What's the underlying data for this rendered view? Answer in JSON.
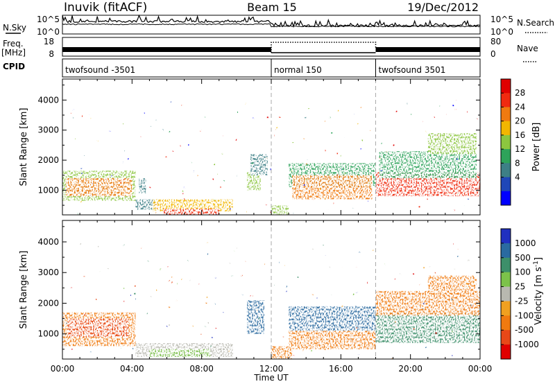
{
  "header": {
    "station": "Inuvik (fitACF)",
    "beam": "Beam 15",
    "date": "19/Dec/2012"
  },
  "nsky_panel": {
    "left_label": "N.Sky",
    "right_label": "N.Search",
    "ticks_left": [
      "10^5",
      "10^0"
    ],
    "ticks_right": [
      "10^5",
      "10^0"
    ]
  },
  "freq_panel": {
    "left_label_line1": "Freq.",
    "left_label_line2": "[MHz]",
    "right_label": "Nave",
    "ticks_left": [
      "18",
      "8"
    ],
    "ticks_right": [
      "80",
      "0"
    ]
  },
  "cpid_panel": {
    "label": "CPID",
    "segments": [
      {
        "start_hour": 0,
        "end_hour": 12,
        "name": "twofsound -3501"
      },
      {
        "start_hour": 12,
        "end_hour": 18,
        "name": "normal 150"
      },
      {
        "start_hour": 18,
        "end_hour": 24,
        "name": "twofsound 3501"
      }
    ]
  },
  "x_axis": {
    "label": "Time UT",
    "tick_labels": [
      "00:00",
      "04:00",
      "08:00",
      "12:00",
      "16:00",
      "20:00",
      "00:00"
    ]
  },
  "colors": {
    "power": [
      "#0000ff",
      "#1f47b8",
      "#3d7f86",
      "#2ea35a",
      "#8cc63f",
      "#f2b600",
      "#f07a10",
      "#f02a10",
      "#e00000"
    ],
    "velocity": [
      "#2030c0",
      "#2a6aa0",
      "#3d8f6a",
      "#7cc24a",
      "#b8b8b0",
      "#f0a020",
      "#f07a10",
      "#e84818",
      "#e00000"
    ]
  },
  "chart_data": [
    {
      "type": "heatmap",
      "title": "Power",
      "xlabel": "",
      "ylabel": "Slant Range [km]",
      "xlim": [
        0,
        24
      ],
      "ylim": [
        180,
        4700
      ],
      "y_ticks": [
        1000,
        2000,
        3000,
        4000
      ],
      "colorbar_label": "Power [dB]",
      "colorbar_ticks": [
        "28",
        "24",
        "20",
        "16",
        "12",
        "8",
        "4"
      ],
      "colorbar_range": [
        0,
        32
      ],
      "regions": [
        {
          "x": [
            0.0,
            4.2
          ],
          "y": [
            650,
            1650
          ],
          "value": 16
        },
        {
          "x": [
            0.2,
            4.0
          ],
          "y": [
            800,
            1400
          ],
          "value": 26
        },
        {
          "x": [
            4.2,
            5.4
          ],
          "y": [
            350,
            700
          ],
          "value": 10
        },
        {
          "x": [
            5.2,
            9.8
          ],
          "y": [
            300,
            700
          ],
          "value": 20
        },
        {
          "x": [
            5.8,
            9.0
          ],
          "y": [
            180,
            380
          ],
          "value": 30
        },
        {
          "x": [
            4.4,
            4.8
          ],
          "y": [
            900,
            1400
          ],
          "value": 10
        },
        {
          "x": [
            10.6,
            11.4
          ],
          "y": [
            1000,
            1600
          ],
          "value": 18
        },
        {
          "x": [
            10.8,
            11.8
          ],
          "y": [
            1500,
            2200
          ],
          "value": 10
        },
        {
          "x": [
            12.0,
            13.0
          ],
          "y": [
            180,
            500
          ],
          "value": 18
        },
        {
          "x": [
            13.0,
            18.0
          ],
          "y": [
            1100,
            1900
          ],
          "value": 14
        },
        {
          "x": [
            13.2,
            17.8
          ],
          "y": [
            700,
            1500
          ],
          "value": 26
        },
        {
          "x": [
            18.0,
            24.0
          ],
          "y": [
            800,
            1600
          ],
          "value": 28
        },
        {
          "x": [
            18.2,
            23.8
          ],
          "y": [
            1400,
            2300
          ],
          "value": 12
        },
        {
          "x": [
            21.0,
            23.8
          ],
          "y": [
            2200,
            2900
          ],
          "value": 16
        }
      ]
    },
    {
      "type": "heatmap",
      "title": "Velocity",
      "xlabel": "Time UT",
      "ylabel": "Slant Range [km]",
      "xlim": [
        0,
        24
      ],
      "ylim": [
        180,
        4700
      ],
      "y_ticks": [
        1000,
        2000,
        3000,
        4000
      ],
      "colorbar_label": "Velocity [m s^-1]",
      "colorbar_ticks": [
        "1000",
        "500",
        "100",
        "25",
        "-25",
        "-100",
        "-500",
        "-1000"
      ],
      "regions": [
        {
          "x": [
            0.0,
            4.2
          ],
          "y": [
            600,
            1700
          ],
          "value": -300
        },
        {
          "x": [
            0.3,
            3.8
          ],
          "y": [
            900,
            1500
          ],
          "value": -700
        },
        {
          "x": [
            4.2,
            9.8
          ],
          "y": [
            250,
            700
          ],
          "value": 0
        },
        {
          "x": [
            5.0,
            8.5
          ],
          "y": [
            250,
            500
          ],
          "value": 80
        },
        {
          "x": [
            10.6,
            11.6
          ],
          "y": [
            1000,
            2100
          ],
          "value": 600
        },
        {
          "x": [
            12.0,
            13.2
          ],
          "y": [
            180,
            600
          ],
          "value": -200
        },
        {
          "x": [
            13.0,
            18.0
          ],
          "y": [
            1100,
            1900
          ],
          "value": 700
        },
        {
          "x": [
            13.0,
            18.0
          ],
          "y": [
            500,
            1100
          ],
          "value": -150
        },
        {
          "x": [
            18.0,
            24.0
          ],
          "y": [
            700,
            1700
          ],
          "value": 150
        },
        {
          "x": [
            18.0,
            24.0
          ],
          "y": [
            1600,
            2400
          ],
          "value": -200
        },
        {
          "x": [
            21.0,
            23.8
          ],
          "y": [
            2200,
            2900
          ],
          "value": -300
        }
      ]
    }
  ]
}
